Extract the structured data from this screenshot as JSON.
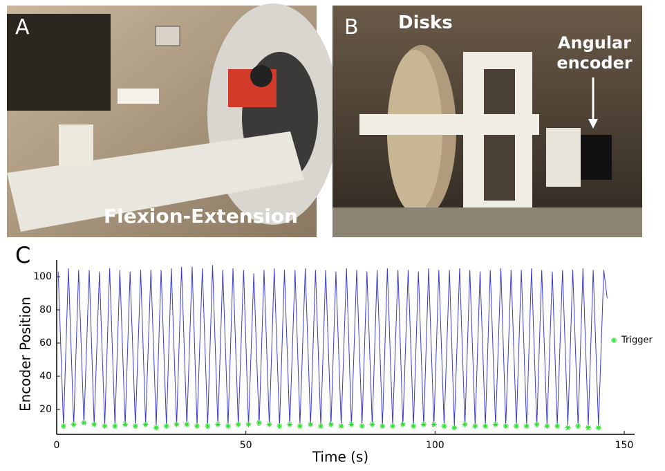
{
  "panels": [
    {
      "label": "A",
      "caption": "Flexion-Extension"
    },
    {
      "label": "B",
      "annotations": [
        "Disks",
        "Angular encoder"
      ]
    },
    {
      "label": "C"
    }
  ],
  "chart_data": {
    "type": "line",
    "xlabel": "Time (s)",
    "ylabel": "Encoder Position",
    "xlim": [
      0,
      150
    ],
    "ylim": [
      5,
      110
    ],
    "xticks": [
      0,
      50,
      100,
      150
    ],
    "yticks": [
      20,
      40,
      60,
      80,
      100
    ],
    "grid": false,
    "legend": "right",
    "series": [
      {
        "type": "line",
        "color": "#3a3acc",
        "x": [
          0.4,
          1.8,
          3.1,
          4.5,
          5.8,
          7.2,
          8.6,
          9.9,
          11.3,
          12.7,
          14.0,
          15.4,
          16.7,
          18.1,
          19.4,
          20.8,
          22.2,
          23.5,
          24.9,
          26.3,
          27.6,
          29.0,
          30.3,
          31.7,
          33.0,
          34.4,
          35.8,
          37.1,
          38.5,
          39.9,
          41.2,
          42.6,
          43.9,
          45.3,
          46.6,
          48.0,
          49.4,
          50.7,
          52.1,
          53.5,
          54.8,
          56.2,
          57.5,
          58.9,
          60.2,
          61.6,
          63.0,
          64.3,
          65.7,
          67.1,
          68.4,
          69.8,
          71.1,
          72.5,
          73.8,
          75.2,
          76.6,
          77.9,
          79.3,
          80.7,
          82.0,
          83.4,
          84.7,
          86.1,
          87.4,
          88.8,
          90.2,
          91.5,
          92.9,
          94.3,
          95.6,
          97.0,
          98.3,
          99.7,
          101.0,
          102.4,
          103.8,
          105.1,
          106.5,
          107.9,
          109.2,
          110.6,
          111.9,
          113.3,
          114.6,
          116.0,
          117.4,
          118.7,
          120.1,
          121.5,
          122.8,
          124.2,
          125.5,
          126.9,
          128.2,
          129.6,
          131.0,
          132.3,
          133.7,
          135.1,
          136.4,
          137.8,
          139.1,
          140.5,
          141.8,
          143.2,
          144.6,
          145.5
        ],
        "values": [
          103,
          10,
          105,
          10,
          104,
          11,
          104,
          10,
          103,
          10,
          105,
          10,
          104,
          10,
          103,
          10,
          104,
          11,
          104,
          10,
          104,
          10,
          105,
          10,
          106,
          10,
          106,
          10,
          105,
          10,
          107,
          10,
          104,
          10,
          105,
          10,
          104,
          10,
          102,
          10,
          104,
          10,
          105,
          10,
          104,
          10,
          104,
          11,
          105,
          10,
          104,
          10,
          104,
          10,
          103,
          10,
          105,
          10,
          104,
          10,
          103,
          10,
          104,
          10,
          105,
          10,
          104,
          10,
          104,
          10,
          103,
          10,
          105,
          10,
          104,
          10,
          104,
          10,
          105,
          10,
          104,
          10,
          103,
          10,
          104,
          10,
          105,
          10,
          104,
          10,
          104,
          10,
          105,
          10,
          104,
          10,
          103,
          10,
          104,
          10,
          104,
          10,
          105,
          10,
          104,
          10,
          104,
          87
        ]
      },
      {
        "type": "scatter",
        "name": "Trigger",
        "color": "#33e033",
        "x": [
          1.8,
          4.5,
          7.2,
          9.9,
          12.7,
          15.4,
          18.1,
          20.8,
          23.5,
          26.3,
          29.0,
          31.7,
          34.4,
          37.1,
          39.9,
          42.6,
          45.3,
          48.0,
          50.7,
          53.5,
          56.2,
          58.9,
          61.6,
          64.3,
          67.1,
          69.8,
          72.5,
          75.2,
          77.9,
          80.7,
          83.4,
          86.1,
          88.8,
          91.5,
          94.3,
          97.0,
          99.7,
          102.4,
          105.1,
          107.9,
          110.6,
          113.3,
          116.0,
          118.7,
          121.5,
          124.2,
          126.9,
          129.6,
          132.3,
          135.1,
          137.8,
          140.5,
          143.2
        ],
        "values": [
          10,
          11,
          12,
          11,
          10,
          10,
          11,
          10,
          11,
          9,
          10,
          11,
          11,
          10,
          10,
          11,
          10,
          11,
          11,
          12,
          11,
          10,
          11,
          10,
          11,
          10,
          11,
          10,
          11,
          10,
          11,
          10,
          10,
          11,
          10,
          11,
          11,
          10,
          9,
          11,
          10,
          10,
          11,
          10,
          10,
          10,
          11,
          10,
          10,
          9,
          10,
          9,
          9
        ]
      }
    ]
  }
}
